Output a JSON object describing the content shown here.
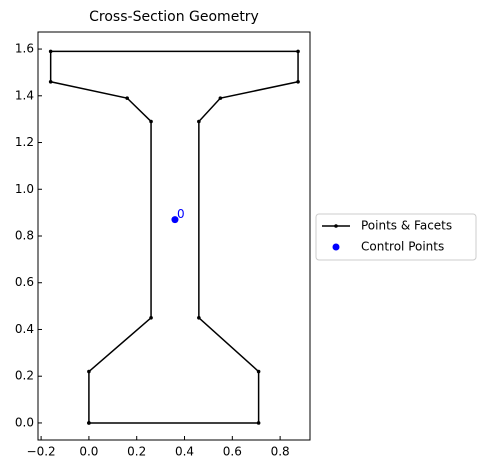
{
  "chart_data": {
    "type": "line",
    "title": "Cross-Section Geometry",
    "xlim": [
      -0.213,
      0.925
    ],
    "ylim": [
      -0.073,
      1.673
    ],
    "xticks": [
      {
        "value": -0.2,
        "label": "−0.2"
      },
      {
        "value": 0,
        "label": "0.0"
      },
      0.2,
      0.4,
      0.6,
      0.8
    ],
    "yticks": [
      {
        "value": 0,
        "label": "0.0"
      },
      0.2,
      0.4,
      0.6,
      0.8,
      {
        "value": 1,
        "label": "1.0"
      },
      1.2,
      1.4,
      1.6
    ],
    "series": [
      {
        "name": "Points & Facets",
        "color": "#000000",
        "x": [
          0,
          0.71,
          0.71,
          0.46,
          0.46,
          0.55,
          0.875,
          0.875,
          -0.16,
          -0.16,
          0.16,
          0.26,
          0.26,
          0,
          0
        ],
        "values": [
          0,
          0,
          0.22,
          0.45,
          1.29,
          1.39,
          1.46,
          1.59,
          1.59,
          1.46,
          1.39,
          1.29,
          0.45,
          0.22,
          0
        ]
      },
      {
        "name": "Control Points",
        "color": "#0000ff",
        "x": [
          0.36
        ],
        "values": [
          0.87
        ]
      }
    ],
    "annotation": "0",
    "legend": "right"
  }
}
